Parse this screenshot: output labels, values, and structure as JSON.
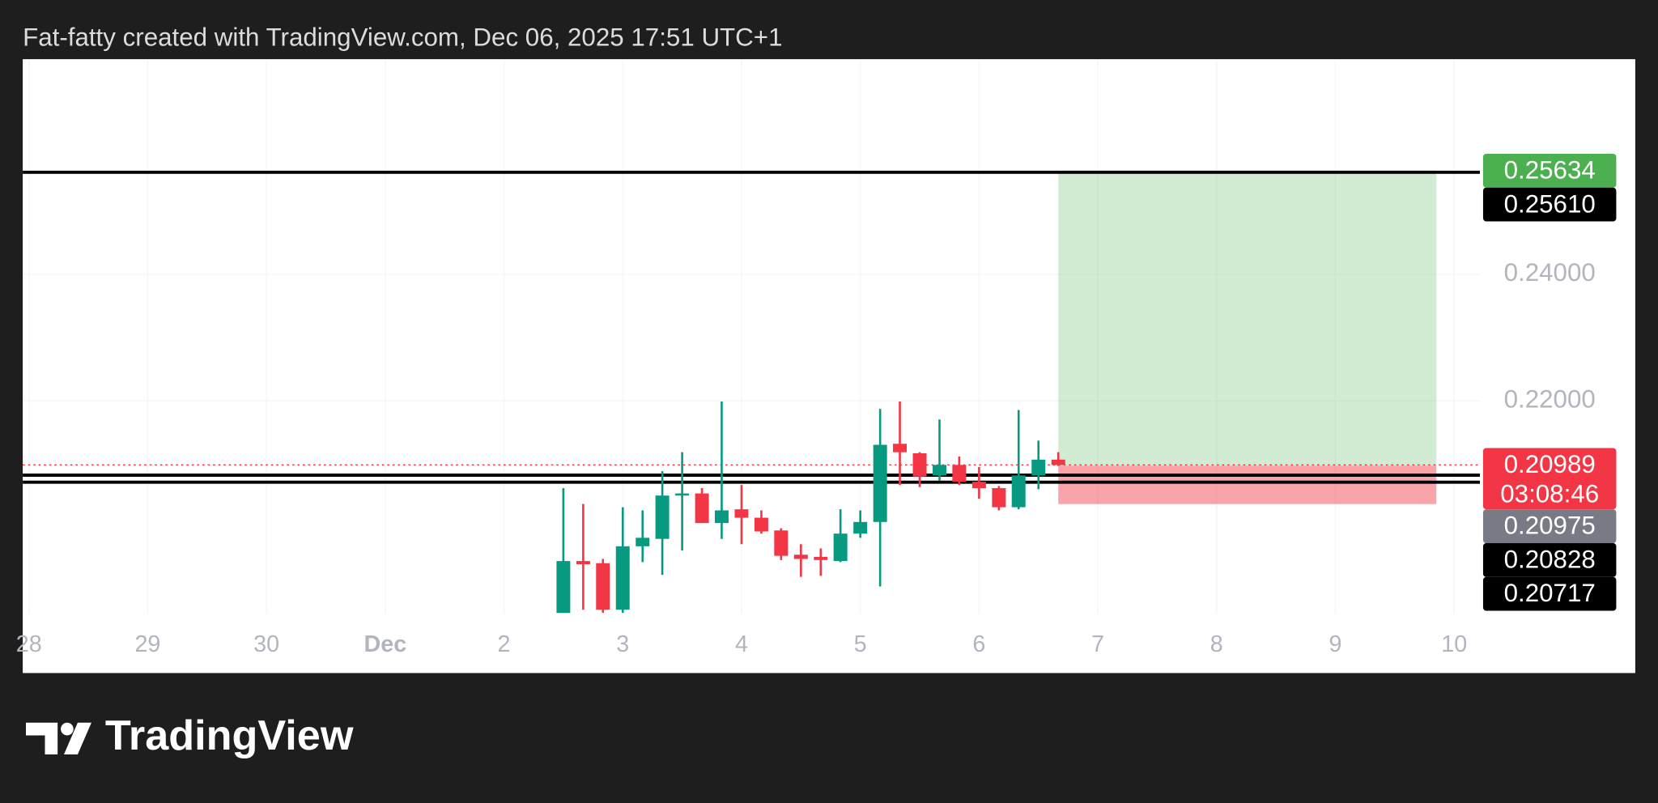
{
  "chart_data": {
    "type": "candlestick",
    "title": "Fat-fatty created with TradingView.com, Dec 06, 2025 17:51 UTC+1",
    "x": [
      2.5,
      2.667,
      2.833,
      3,
      3.167,
      3.333,
      3.5,
      3.667,
      3.833,
      4,
      4.167,
      4.333,
      4.5,
      4.667,
      4.833,
      5,
      5.167,
      5.333,
      5.5,
      5.667,
      5.833,
      6,
      6.167,
      6.333,
      6.5,
      6.667
    ],
    "open": [
      0.18654,
      0.19472,
      0.19438,
      0.18704,
      0.19705,
      0.19822,
      0.20506,
      0.20539,
      0.20072,
      0.20289,
      0.20156,
      0.19955,
      0.19572,
      0.19538,
      0.19472,
      0.19905,
      0.20089,
      0.21323,
      0.21173,
      0.20823,
      0.2099,
      0.20723,
      0.20623,
      0.20322,
      0.20823,
      0.21073
    ],
    "high": [
      0.20623,
      0.20372,
      0.19505,
      0.20322,
      0.20272,
      0.2089,
      0.2119,
      0.20623,
      0.2199,
      0.20673,
      0.20272,
      0.19989,
      0.19739,
      0.19672,
      0.20289,
      0.20272,
      0.21874,
      0.2199,
      0.2119,
      0.21707,
      0.21123,
      0.20956,
      0.20656,
      0.21857,
      0.21373,
      0.2119
    ],
    "low": [
      0.18654,
      0.18704,
      0.18654,
      0.18654,
      0.19455,
      0.19255,
      0.19639,
      0.20072,
      0.19822,
      0.19739,
      0.19905,
      0.19488,
      0.19222,
      0.19238,
      0.19455,
      0.19839,
      0.19071,
      0.20673,
      0.20639,
      0.20739,
      0.20673,
      0.20456,
      0.20272,
      0.20289,
      0.20606,
      0.20973
    ],
    "close": [
      0.19472,
      0.19422,
      0.18704,
      0.19705,
      0.19839,
      0.20506,
      0.20539,
      0.20072,
      0.20272,
      0.20156,
      0.19939,
      0.19555,
      0.19505,
      0.19488,
      0.19905,
      0.20089,
      0.21307,
      0.2119,
      0.20806,
      0.2099,
      0.20723,
      0.20623,
      0.20322,
      0.20823,
      0.21073,
      0.20989
    ],
    "up_color": "#089981",
    "down_color": "#f23645",
    "xlim": [
      -2.052,
      10.217
    ],
    "ylim": [
      0.18638,
      0.27395
    ],
    "xticks": [
      {
        "value": -2,
        "label": "28"
      },
      {
        "value": -1,
        "label": "29"
      },
      {
        "value": 0,
        "label": "30"
      },
      {
        "value": 1,
        "label": "Dec"
      },
      2,
      3,
      4,
      5,
      6,
      7,
      8,
      9,
      10
    ],
    "yticks": [
      {
        "value": 0.24,
        "label": "0.24000"
      },
      {
        "value": 0.22,
        "label": "0.22000"
      }
    ],
    "hlines": [
      {
        "value": 0.2561,
        "label": "0.25610"
      },
      {
        "value": 0.20828,
        "label": "0.20828"
      },
      {
        "value": 0.20717,
        "label": "0.20717"
      }
    ],
    "current_price": {
      "value": 0.20989,
      "label": "0.20989",
      "countdown": "03:08:46"
    },
    "position": {
      "x": [
        6.667,
        9.85
      ],
      "entry": {
        "value": 0.20975,
        "label": "0.20975"
      },
      "target": {
        "value": 0.25634,
        "label": "0.25634"
      },
      "stop": 0.20372
    }
  },
  "footer": {
    "brand": "TradingView"
  }
}
